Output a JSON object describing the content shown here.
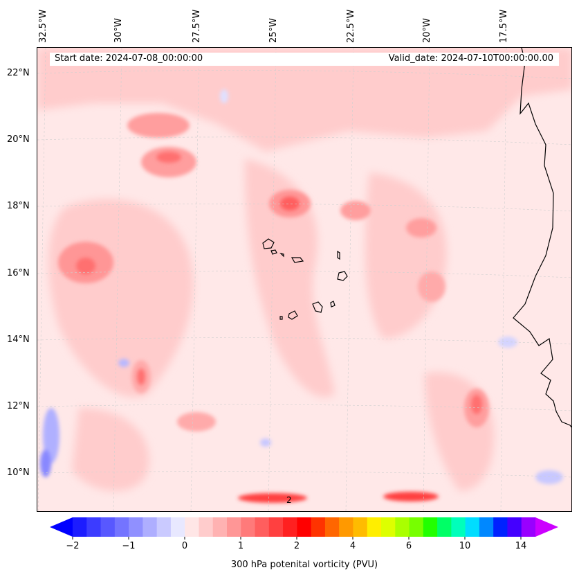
{
  "header": {
    "start_date": "Start date: 2024-07-08_00:00:00",
    "valid_date": "Valid_date: 2024-07-10T00:00:00.00"
  },
  "longitude_labels": [
    "32.5°W",
    "30°W",
    "27.5°W",
    "25°W",
    "22.5°W",
    "20°W",
    "17.5°W"
  ],
  "latitude_labels": [
    "22°N",
    "20°N",
    "18°N",
    "16°N",
    "14°N",
    "12°N",
    "10°N"
  ],
  "contour_label": "2",
  "colorbar": {
    "label": "300 hPa potenital vorticity (PVU)",
    "ticks": [
      "−2",
      "−1",
      "0",
      "1",
      "2",
      "4",
      "6",
      "10",
      "14"
    ],
    "colors": [
      "#1c1cff",
      "#3c3cff",
      "#5858ff",
      "#7474ff",
      "#9090ff",
      "#aeaeff",
      "#cacaff",
      "#e8e8ff",
      "#ffe6e6",
      "#ffcccc",
      "#ffb2b2",
      "#ff9696",
      "#ff7a7a",
      "#ff5e5e",
      "#ff4040",
      "#ff2020",
      "#ff0000",
      "#ff3300",
      "#ff6600",
      "#ff9900",
      "#ffbb00",
      "#ffee00",
      "#ddff00",
      "#aaff00",
      "#77ff00",
      "#22ff00",
      "#00ff66",
      "#00ffbb",
      "#00ddff",
      "#0088ff",
      "#0022ff",
      "#4400ff",
      "#9900ff"
    ],
    "under_color": "#0000ff",
    "over_color": "#cc00ff"
  },
  "map": {
    "background_color": "#ffe8e8",
    "coast_color": "#000000"
  }
}
